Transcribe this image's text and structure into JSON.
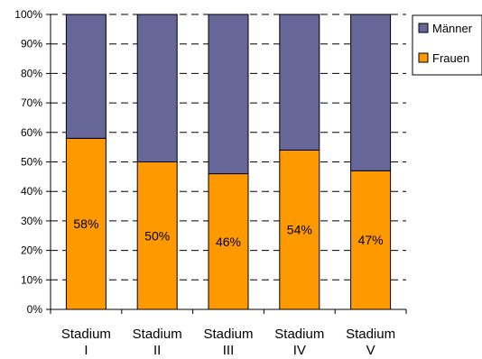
{
  "chart_data": {
    "type": "bar",
    "stacked": true,
    "percent": true,
    "categories": [
      [
        "Stadium",
        "I"
      ],
      [
        "Stadium",
        "II"
      ],
      [
        "Stadium",
        "III"
      ],
      [
        "Stadium",
        "IV"
      ],
      [
        "Stadium",
        "V"
      ]
    ],
    "series": [
      {
        "name": "Frauen",
        "values": [
          58,
          50,
          46,
          54,
          47
        ],
        "color": "#ff9900"
      },
      {
        "name": "Männer",
        "values": [
          42,
          50,
          54,
          46,
          53
        ],
        "color": "#666699"
      }
    ],
    "data_labels": [
      "58%",
      "50%",
      "46%",
      "54%",
      "47%"
    ],
    "y_ticks": [
      "0%",
      "10%",
      "20%",
      "30%",
      "40%",
      "50%",
      "60%",
      "70%",
      "80%",
      "90%",
      "100%"
    ],
    "ylim": [
      0,
      100
    ],
    "grid": "dashed horizontal",
    "legend": {
      "position": "top-right",
      "entries": [
        "Männer",
        "Frauen"
      ]
    },
    "title": "",
    "xlabel": "",
    "ylabel": ""
  }
}
